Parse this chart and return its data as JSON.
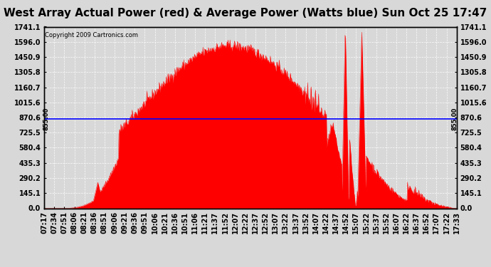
{
  "title": "West Array Actual Power (red) & Average Power (Watts blue) Sun Oct 25 17:47",
  "copyright": "Copyright 2009 Cartronics.com",
  "avg_power": 855.0,
  "ymin": 0.0,
  "ymax": 1741.1,
  "yticks": [
    0.0,
    145.1,
    290.2,
    435.3,
    580.4,
    725.5,
    870.6,
    1015.6,
    1160.7,
    1305.8,
    1450.9,
    1596.0,
    1741.1
  ],
  "xtick_labels": [
    "07:17",
    "07:34",
    "07:51",
    "08:06",
    "08:21",
    "08:36",
    "08:51",
    "09:06",
    "09:21",
    "09:36",
    "09:51",
    "10:06",
    "10:21",
    "10:36",
    "10:51",
    "11:06",
    "11:21",
    "11:37",
    "11:52",
    "12:07",
    "12:22",
    "12:37",
    "12:52",
    "13:07",
    "13:22",
    "13:37",
    "13:52",
    "14:07",
    "14:22",
    "14:37",
    "14:52",
    "15:07",
    "15:22",
    "15:37",
    "15:52",
    "16:07",
    "16:22",
    "16:37",
    "16:52",
    "17:07",
    "17:22",
    "17:33"
  ],
  "bg_color": "#d8d8d8",
  "plot_bg_color": "#d8d8d8",
  "fill_color": "#ff0000",
  "line_color": "#0000ff",
  "title_fontsize": 11,
  "tick_fontsize": 7,
  "avg_label": "855.00",
  "figsize": [
    6.9,
    3.75
  ],
  "dpi": 100
}
